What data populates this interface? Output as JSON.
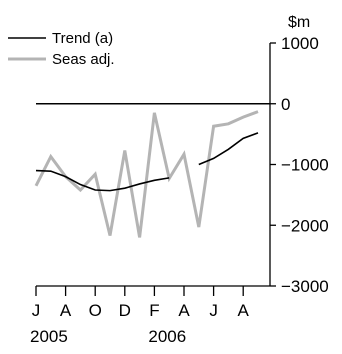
{
  "chart_data": {
    "type": "line",
    "unit_label": "$m",
    "ylim": [
      -3000,
      1000
    ],
    "y_ticks": [
      1000,
      0,
      -1000,
      -2000,
      -3000
    ],
    "y_tick_labels": [
      "1000",
      "0",
      "−1000",
      "−2000",
      "−3000"
    ],
    "zero_line": 0,
    "x_tick_labels": [
      "J",
      "A",
      "O",
      "D",
      "F",
      "A",
      "J",
      "A"
    ],
    "x_tick_months": [
      0,
      2,
      4,
      6,
      8,
      10,
      12,
      14
    ],
    "year_labels": [
      {
        "label": "2005",
        "month": 0
      },
      {
        "label": "2006",
        "month": 8
      }
    ],
    "x_months": [
      "Jul 2005",
      "Aug 2005",
      "Sep 2005",
      "Oct 2005",
      "Nov 2005",
      "Dec 2005",
      "Jan 2006",
      "Feb 2006",
      "Mar 2006",
      "Apr 2006",
      "May 2006",
      "Jun 2006",
      "Jul 2006",
      "Aug 2006",
      "Sep 2006",
      "Oct 2006"
    ],
    "series": [
      {
        "name": "Trend (a)",
        "color": "#000000",
        "values": [
          -1100,
          -1110,
          -1200,
          -1330,
          -1420,
          -1430,
          -1390,
          -1320,
          -1260,
          -1220,
          null,
          -1000,
          -900,
          -750,
          -570,
          -480
        ]
      },
      {
        "name": "Seas adj.",
        "color": "#b4b4b4",
        "values": [
          -1350,
          -870,
          -1200,
          -1420,
          -1160,
          -2170,
          -770,
          -2200,
          -150,
          -1230,
          -830,
          -2030,
          -370,
          -330,
          -220,
          -130
        ]
      }
    ],
    "legend_position": "top-left",
    "grid": false
  }
}
